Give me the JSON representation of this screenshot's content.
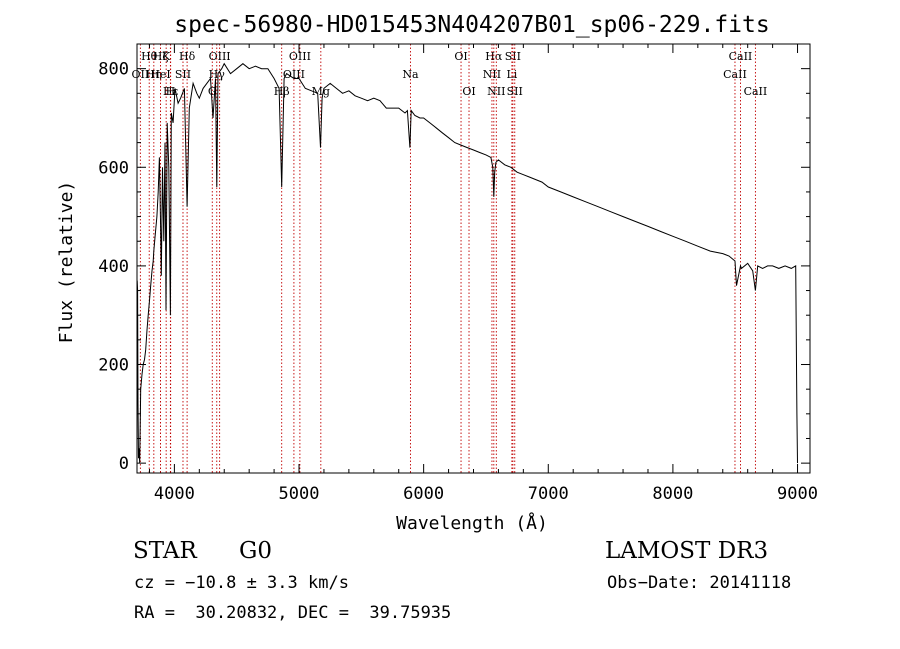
{
  "chart_data": {
    "type": "line",
    "title": "spec-56980-HD015453N404207B01_sp06-229.fits",
    "xlabel": "Wavelength (Å)",
    "ylabel": "Flux (relative)",
    "xlim": [
      3700,
      9100
    ],
    "ylim": [
      -20,
      850
    ],
    "x_ticks": [
      4000,
      5000,
      6000,
      7000,
      8000,
      9000
    ],
    "y_ticks": [
      0,
      200,
      400,
      600,
      800
    ],
    "grid": false,
    "series": [
      {
        "name": "flux",
        "x": [
          3700,
          3702,
          3705,
          3708,
          3712,
          3716,
          3722,
          3730,
          3740,
          3750,
          3760,
          3770,
          3780,
          3790,
          3800,
          3810,
          3820,
          3830,
          3835,
          3845,
          3860,
          3870,
          3880,
          3889,
          3895,
          3905,
          3915,
          3925,
          3933,
          3942,
          3955,
          3968,
          3975,
          3990,
          4005,
          4030,
          4050,
          4080,
          4102,
          4120,
          4150,
          4180,
          4200,
          4230,
          4260,
          4290,
          4310,
          4330,
          4340,
          4350,
          4380,
          4400,
          4450,
          4500,
          4550,
          4600,
          4650,
          4700,
          4750,
          4800,
          4840,
          4861,
          4880,
          4900,
          4930,
          4960,
          5000,
          5050,
          5100,
          5150,
          5172,
          5185,
          5200,
          5250,
          5300,
          5350,
          5400,
          5450,
          5500,
          5550,
          5600,
          5650,
          5700,
          5750,
          5800,
          5850,
          5870,
          5890,
          5900,
          5930,
          5970,
          6000,
          6050,
          6100,
          6150,
          6200,
          6250,
          6300,
          6350,
          6400,
          6450,
          6500,
          6540,
          6555,
          6563,
          6570,
          6580,
          6600,
          6650,
          6700,
          6750,
          6800,
          6850,
          6900,
          6950,
          7000,
          7100,
          7200,
          7300,
          7400,
          7500,
          7600,
          7700,
          7800,
          7900,
          8000,
          8100,
          8200,
          8300,
          8400,
          8450,
          8498,
          8510,
          8542,
          8550,
          8600,
          8640,
          8662,
          8680,
          8720,
          8760,
          8800,
          8850,
          8900,
          8950,
          8985,
          8995,
          9000
        ],
        "y": [
          170,
          370,
          350,
          120,
          10,
          30,
          0,
          150,
          180,
          200,
          210,
          230,
          270,
          300,
          330,
          360,
          390,
          410,
          430,
          460,
          500,
          550,
          620,
          480,
          380,
          600,
          450,
          650,
          310,
          690,
          600,
          300,
          710,
          690,
          760,
          730,
          740,
          760,
          520,
          720,
          770,
          750,
          740,
          760,
          770,
          780,
          700,
          780,
          560,
          790,
          800,
          810,
          790,
          800,
          810,
          800,
          805,
          800,
          800,
          780,
          760,
          560,
          780,
          790,
          785,
          780,
          780,
          760,
          755,
          750,
          640,
          740,
          760,
          770,
          760,
          750,
          755,
          745,
          740,
          735,
          740,
          735,
          720,
          720,
          720,
          710,
          715,
          640,
          715,
          705,
          700,
          700,
          690,
          680,
          670,
          660,
          650,
          645,
          640,
          635,
          630,
          625,
          620,
          600,
          540,
          590,
          610,
          615,
          605,
          600,
          590,
          585,
          580,
          575,
          570,
          560,
          550,
          540,
          530,
          520,
          510,
          500,
          490,
          480,
          470,
          460,
          450,
          440,
          430,
          425,
          420,
          410,
          360,
          400,
          395,
          405,
          390,
          350,
          400,
          395,
          400,
          400,
          395,
          400,
          395,
          400,
          100,
          0
        ]
      }
    ],
    "annotations": [
      {
        "label": "Hθ",
        "x": 3798,
        "row": 1
      },
      {
        "label": "OII",
        "x": 3727,
        "row": 2
      },
      {
        "label": "Hη",
        "x": 3835,
        "row": 2
      },
      {
        "label": "HeI",
        "x": 3889,
        "row": 2
      },
      {
        "label": "Hζ",
        "x": 3889,
        "row": 1
      },
      {
        "label": "Hε",
        "x": 3970,
        "row": 3
      },
      {
        "label": "K",
        "x": 3934,
        "row": 1
      },
      {
        "label": "H",
        "x": 3968,
        "row": 3
      },
      {
        "label": "SII",
        "x": 4069,
        "row": 2
      },
      {
        "label": "Hδ",
        "x": 4102,
        "row": 1
      },
      {
        "label": "OIII",
        "x": 4363,
        "row": 1
      },
      {
        "label": "Hγ",
        "x": 4340,
        "row": 2
      },
      {
        "label": "G",
        "x": 4304,
        "row": 3
      },
      {
        "label": "Hβ",
        "x": 4861,
        "row": 3
      },
      {
        "label": "OIII",
        "x": 4959,
        "row": 2
      },
      {
        "label": "OIII",
        "x": 5007,
        "row": 1
      },
      {
        "label": "Mg",
        "x": 5175,
        "row": 3
      },
      {
        "label": "Na",
        "x": 5894,
        "row": 2
      },
      {
        "label": "OI",
        "x": 6300,
        "row": 1
      },
      {
        "label": "OI",
        "x": 6364,
        "row": 3
      },
      {
        "label": "Hα",
        "x": 6563,
        "row": 1
      },
      {
        "label": "NII",
        "x": 6548,
        "row": 2
      },
      {
        "label": "NII",
        "x": 6583,
        "row": 3
      },
      {
        "label": "SII",
        "x": 6716,
        "row": 1
      },
      {
        "label": "Li",
        "x": 6708,
        "row": 2
      },
      {
        "label": "SII",
        "x": 6731,
        "row": 3
      },
      {
        "label": "CaII",
        "x": 8542,
        "row": 1
      },
      {
        "label": "CaII",
        "x": 8498,
        "row": 2
      },
      {
        "label": "CaII",
        "x": 8662,
        "row": 3
      }
    ]
  },
  "info": {
    "object_type": "STAR",
    "subclass": "G0",
    "survey": "LAMOST DR3",
    "cz": "cz = −10.8 ± 3.3 km/s",
    "obs_date": "Obs−Date: 20141118",
    "coords": "RA =  30.20832, DEC =  39.75935"
  }
}
